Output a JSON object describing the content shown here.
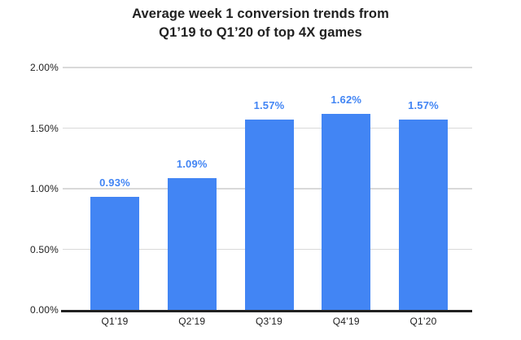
{
  "title": {
    "line1": "Average week 1 conversion trends from",
    "line2": "Q1’19 to Q1’20 of top 4X games"
  },
  "chart_data": {
    "type": "bar",
    "title": "Average week 1 conversion trends from Q1’19 to Q1’20 of top 4X games",
    "categories": [
      "Q1’19",
      "Q2’19",
      "Q3’19",
      "Q4’19",
      "Q1’20"
    ],
    "values": [
      0.93,
      1.09,
      1.57,
      1.62,
      1.57
    ],
    "data_labels": [
      "0.93%",
      "1.09%",
      "1.57%",
      "1.62%",
      "1.57%"
    ],
    "unit": "%",
    "xlabel": "",
    "ylabel": "",
    "ylim": [
      0,
      2.0
    ],
    "y_ticks": [
      {
        "value": 0,
        "label": "0.00%"
      },
      {
        "value": 0.5,
        "label": "0.50%"
      },
      {
        "value": 1.0,
        "label": "1.00%"
      },
      {
        "value": 1.5,
        "label": "1.50%"
      },
      {
        "value": 2.0,
        "label": "2.00%"
      }
    ],
    "grid": true,
    "legend": "none",
    "colors": {
      "bar": "#4285F4",
      "data_label": "#4285F4",
      "gridline": "#D9D9D9",
      "axis_line": "#212121",
      "tick_text": "#212121",
      "title_text": "#212121",
      "background": "#FFFFFF"
    }
  }
}
